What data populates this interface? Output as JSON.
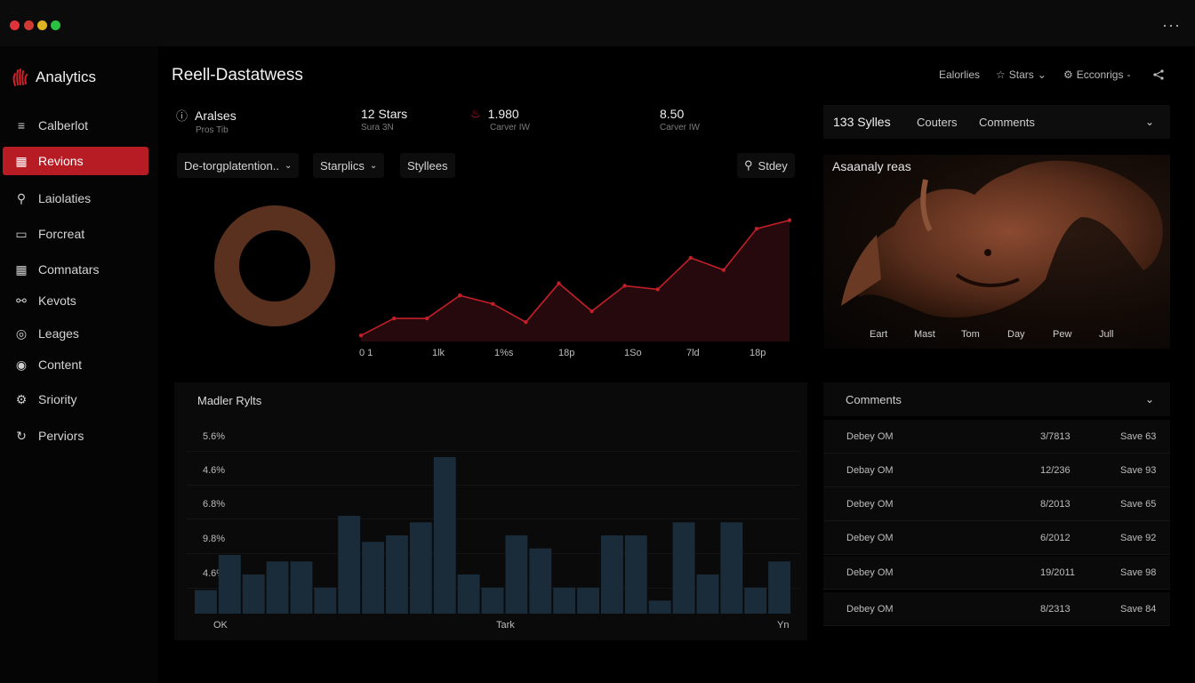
{
  "window": {
    "dots_color": [
      "#e0323b",
      "#d13a33",
      "#e0b322",
      "#28c240"
    ],
    "more": "···"
  },
  "brand": {
    "name": "Analytics",
    "icon": "hand-icon",
    "accent": "#d0222d"
  },
  "nav": [
    {
      "label": "Calberlot",
      "icon": "menu-icon"
    },
    {
      "label": "Revions",
      "icon": "gift-icon",
      "active": true
    },
    {
      "label": "Laiolaties",
      "icon": "tag-icon"
    },
    {
      "label": "Forcreat",
      "icon": "page-icon"
    },
    {
      "label": "Comnatars",
      "icon": "grid-icon"
    },
    {
      "label": "Kevots",
      "icon": "link-icon"
    },
    {
      "label": "Leages",
      "icon": "globe-icon"
    },
    {
      "label": "Content",
      "icon": "target-icon"
    },
    {
      "label": "Sriority",
      "icon": "gear-icon"
    },
    {
      "label": "Perviors",
      "icon": "refresh-icon"
    }
  ],
  "header": {
    "title": "Reell-Dastatwess",
    "actions": [
      {
        "label": "Ealorlies",
        "icon": ""
      },
      {
        "label": "Stars",
        "icon": "star-icon",
        "caret": "⌄"
      },
      {
        "label": "Ecconrigs",
        "icon": "settings-icon",
        "caret": "-"
      }
    ],
    "share_icon": "share-icon"
  },
  "kpis": [
    {
      "value": "Aralses",
      "sub": "Pros  Tib",
      "icon": "info-icon"
    },
    {
      "value": "12 Stars",
      "sub": "Sura  3N"
    },
    {
      "value": "1.980",
      "sub": "Carver  IW",
      "icon": "flask-icon"
    },
    {
      "value": "8.50",
      "sub": "Carver  IW"
    }
  ],
  "filters": {
    "dropdown1": "De-torgplatention..",
    "dropdown2": "Starplics",
    "tab": "Styllees",
    "study": "Stdey"
  },
  "line_chart": {
    "x_labels": [
      "0 1",
      "1lk",
      "1%s",
      "18p",
      "1So",
      "7ld",
      "18p"
    ],
    "accent": "#d0222d"
  },
  "bar_panel": {
    "title": "Madler Rylts",
    "y_labels": [
      "5.6%",
      "4.6%",
      "6.8%",
      "9.8%",
      "4.6%"
    ],
    "x_labels": [
      "OK",
      "Tark",
      "Yn"
    ],
    "bar_color": "#1a2c3a"
  },
  "right_panel": {
    "tabs": [
      "133 Sylles",
      "Couters",
      "Comments"
    ],
    "image_title": "Asaanaly reas",
    "image_axis": [
      "Eart",
      "Mast",
      "Tom",
      "Day",
      "Pew",
      "Jull"
    ]
  },
  "comments": {
    "title": "Comments",
    "rows": [
      {
        "name": "Debey OM",
        "date": "3/7813",
        "save": "Save 63"
      },
      {
        "name": "Debay OM",
        "date": "12/236",
        "save": "Save 93"
      },
      {
        "name": "Debey OM",
        "date": "8/2013",
        "save": "Save 65"
      },
      {
        "name": "Debey OM",
        "date": "6/2012",
        "save": "Save 92"
      },
      {
        "name": "Debey OM",
        "date": "19/2011",
        "save": "Save 98"
      },
      {
        "name": "Debey OM",
        "date": "8/2313",
        "save": "Save 84"
      }
    ]
  },
  "chart_data": [
    {
      "type": "pie",
      "subtype": "donut",
      "values": [
        100
      ],
      "colors": [
        "#5a301f"
      ]
    },
    {
      "type": "area",
      "x": [
        "0 1",
        "",
        "1lk",
        "",
        "1%s",
        "",
        "18p",
        "",
        "1So",
        "",
        "7ld",
        "",
        "18p",
        ""
      ],
      "values": [
        5,
        19,
        19,
        38,
        31,
        16,
        48,
        25,
        46,
        43,
        69,
        59,
        93,
        100
      ],
      "ylim": [
        0,
        110
      ],
      "color": "#c21f29"
    },
    {
      "type": "bar",
      "values": [
        18,
        45,
        30,
        40,
        40,
        20,
        75,
        55,
        60,
        70,
        120,
        30,
        20,
        60,
        50,
        20,
        20,
        60,
        60,
        10,
        70,
        30,
        70,
        20,
        40
      ],
      "ylim": [
        0,
        150
      ],
      "color": "#1a2c3a"
    }
  ]
}
